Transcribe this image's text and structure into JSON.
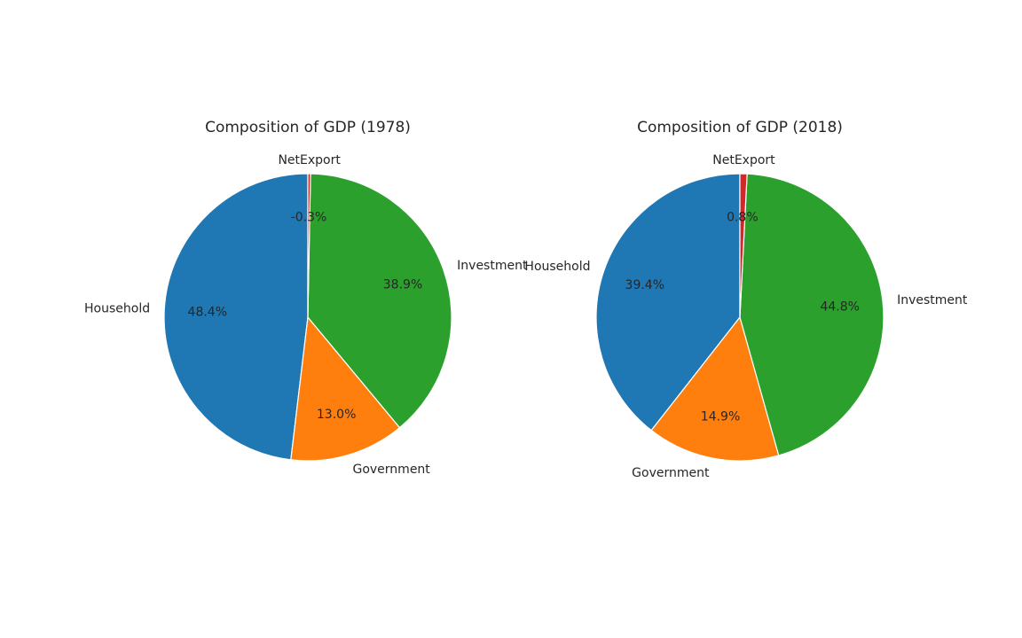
{
  "chart_data": [
    {
      "type": "pie",
      "title": "Composition of GDP (1978)",
      "categories": [
        "Household",
        "Government",
        "Investment",
        "NetExport"
      ],
      "values": [
        48.4,
        13.0,
        38.9,
        -0.3
      ],
      "labels": [
        "48.4%",
        "13.0%",
        "38.9%",
        "-0.3%"
      ],
      "colors": [
        "#1f77b4",
        "#ff7f0e",
        "#2ca02c",
        "#d62728"
      ],
      "start_angle_deg": 90,
      "direction": "counterclockwise"
    },
    {
      "type": "pie",
      "title": "Composition of GDP (2018)",
      "categories": [
        "Household",
        "Government",
        "Investment",
        "NetExport"
      ],
      "values": [
        39.4,
        14.9,
        44.8,
        0.8
      ],
      "labels": [
        "39.4%",
        "14.9%",
        "44.8%",
        "0.8%"
      ],
      "colors": [
        "#1f77b4",
        "#ff7f0e",
        "#2ca02c",
        "#d62728"
      ],
      "start_angle_deg": 90,
      "direction": "counterclockwise"
    }
  ]
}
